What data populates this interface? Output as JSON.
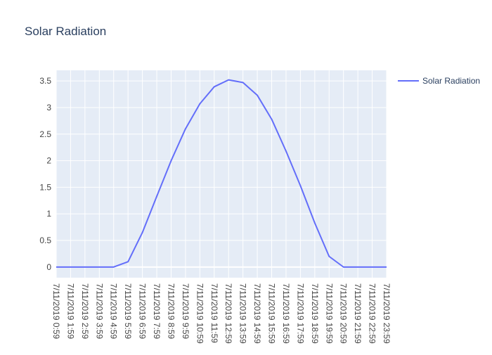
{
  "chart_data": {
    "type": "line",
    "title": "Solar Radiation",
    "xlabel": "",
    "ylabel": "",
    "categories": [
      "7/11/2019 0:59",
      "7/11/2019 1:59",
      "7/11/2019 2:59",
      "7/11/2019 3:59",
      "7/11/2019 4:59",
      "7/11/2019 5:59",
      "7/11/2019 6:59",
      "7/11/2019 7:59",
      "7/11/2019 8:59",
      "7/11/2019 9:59",
      "7/11/2019 10:59",
      "7/11/2019 11:59",
      "7/11/2019 12:59",
      "7/11/2019 13:59",
      "7/11/2019 14:59",
      "7/11/2019 15:59",
      "7/11/2019 16:59",
      "7/11/2019 17:59",
      "7/11/2019 18:59",
      "7/11/2019 19:59",
      "7/11/2019 20:59",
      "7/11/2019 21:59",
      "7/11/2019 22:59",
      "7/11/2019 23:59"
    ],
    "series": [
      {
        "name": "Solar Radiation",
        "color": "#636efa",
        "values": [
          0,
          0,
          0,
          0,
          0,
          0.1,
          0.65,
          1.33,
          2.0,
          2.6,
          3.07,
          3.39,
          3.52,
          3.47,
          3.23,
          2.78,
          2.18,
          1.53,
          0.83,
          0.2,
          0,
          0,
          0,
          0
        ]
      }
    ],
    "yticks": [
      0,
      0.5,
      1,
      1.5,
      2,
      2.5,
      3,
      3.5
    ],
    "ylim": [
      -0.2,
      3.7
    ],
    "grid": true,
    "legend": "top-right",
    "colors": {
      "plot_bg": "#e5ecf6",
      "grid": "#ffffff",
      "text": "#2a3f5f",
      "tick_text": "#444444"
    }
  }
}
